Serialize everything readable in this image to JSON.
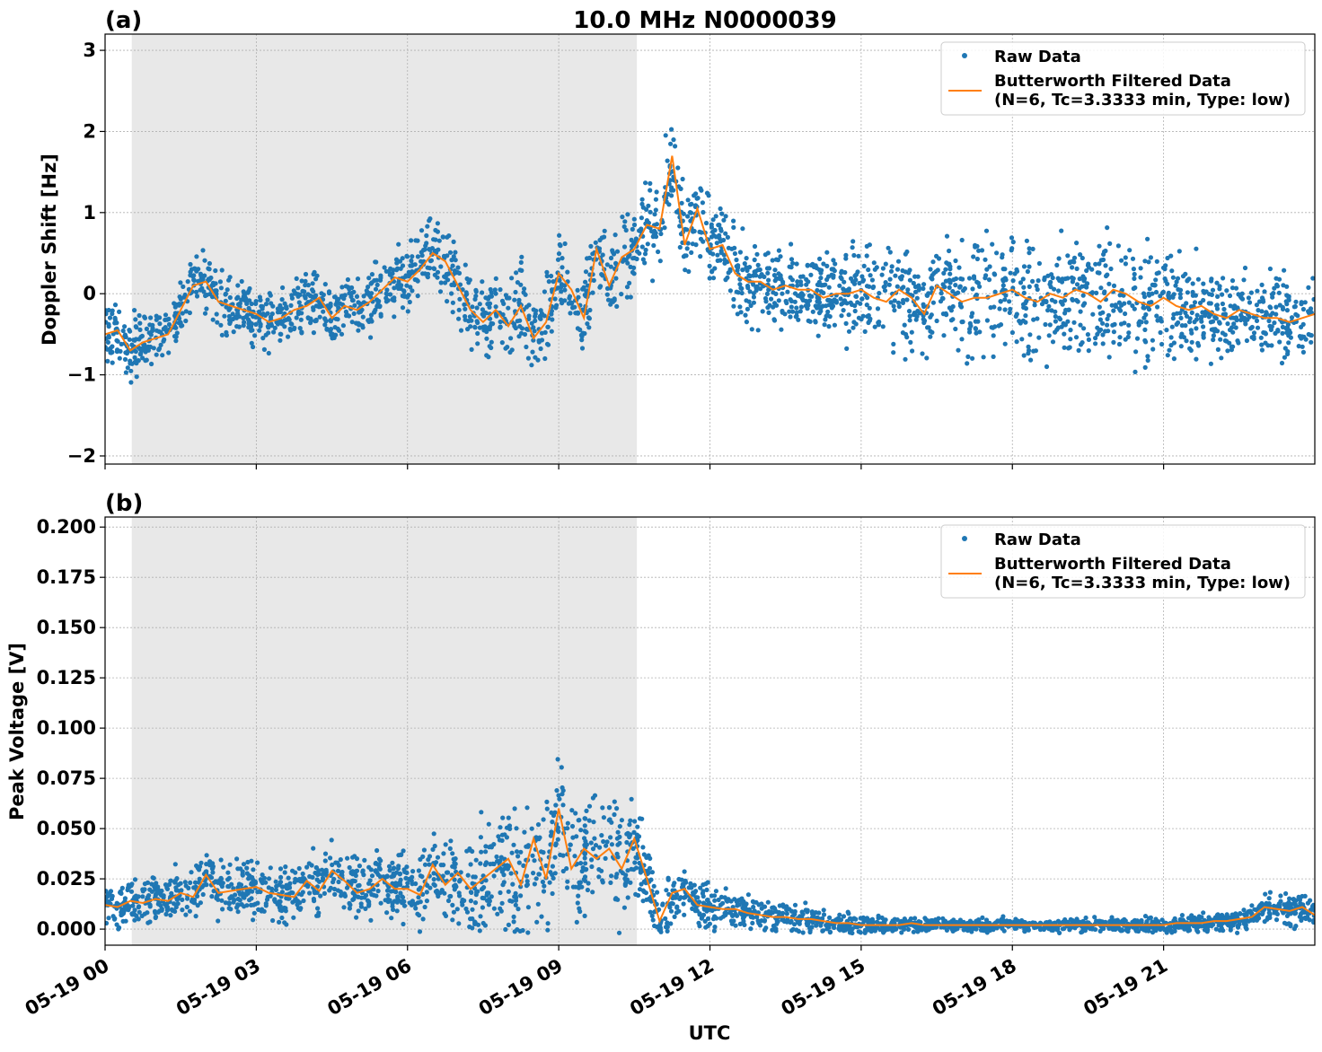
{
  "figure": {
    "xlabel": "UTC",
    "x_ticks": [
      "05-19 00",
      "05-19 03",
      "05-19 06",
      "05-19 09",
      "05-19 12",
      "05-19 15",
      "05-19 18",
      "05-19 21"
    ],
    "night_shading_hours": [
      0.53,
      10.55
    ]
  },
  "colors": {
    "raw": "#1f77b4",
    "filtered": "#ff7f0e",
    "shade": "#e8e8e8"
  },
  "chart_data": [
    {
      "type": "scatter",
      "panel_label": "(a)",
      "title": "10.0 MHz N0000039",
      "xlabel": "",
      "ylabel": "Doppler Shift [Hz]",
      "x_unit": "hours UTC on 05-19",
      "xlim": [
        0,
        24
      ],
      "ylim": [
        -2.1,
        3.2
      ],
      "y_ticks": [
        "3",
        "2",
        "1",
        "0",
        "−1",
        "−2"
      ],
      "grid": true,
      "legend": {
        "placement": "top-right",
        "raw_label": "Raw Data",
        "filtered_label_1": "Butterworth Filtered Data",
        "filtered_label_2": "(N=6, Tc=3.3333 min, Type: low)"
      },
      "series": [
        {
          "name": "Butterworth Filtered Data",
          "hours": [
            0.0,
            0.25,
            0.5,
            0.75,
            1.0,
            1.25,
            1.5,
            1.75,
            2.0,
            2.25,
            2.5,
            2.75,
            3.0,
            3.25,
            3.5,
            3.75,
            4.0,
            4.25,
            4.5,
            4.75,
            5.0,
            5.25,
            5.5,
            5.75,
            6.0,
            6.25,
            6.5,
            6.75,
            7.0,
            7.25,
            7.5,
            7.75,
            8.0,
            8.25,
            8.5,
            8.75,
            9.0,
            9.25,
            9.5,
            9.75,
            10.0,
            10.25,
            10.5,
            10.75,
            11.0,
            11.25,
            11.5,
            11.75,
            12.0,
            12.25,
            12.5,
            12.75,
            13.0,
            13.25,
            13.5,
            13.75,
            14.0,
            14.25,
            14.5,
            14.75,
            15.0,
            15.25,
            15.5,
            15.75,
            16.0,
            16.25,
            16.5,
            16.75,
            17.0,
            17.25,
            17.5,
            17.75,
            18.0,
            18.25,
            18.5,
            18.75,
            19.0,
            19.25,
            19.5,
            19.75,
            20.0,
            20.25,
            20.5,
            20.75,
            21.0,
            21.25,
            21.5,
            21.75,
            22.0,
            22.25,
            22.5,
            22.75,
            23.0,
            23.25,
            23.5,
            23.75,
            24.0
          ],
          "values": [
            -0.5,
            -0.45,
            -0.7,
            -0.6,
            -0.55,
            -0.5,
            -0.2,
            0.1,
            0.15,
            -0.1,
            -0.15,
            -0.2,
            -0.25,
            -0.35,
            -0.3,
            -0.2,
            -0.15,
            -0.05,
            -0.3,
            -0.15,
            -0.2,
            -0.1,
            0.05,
            0.2,
            0.15,
            0.3,
            0.5,
            0.4,
            0.1,
            -0.2,
            -0.35,
            -0.2,
            -0.4,
            -0.15,
            -0.55,
            -0.35,
            0.25,
            0.05,
            -0.3,
            0.55,
            0.1,
            0.45,
            0.55,
            0.85,
            0.8,
            1.7,
            0.6,
            1.05,
            0.55,
            0.6,
            0.25,
            0.15,
            0.15,
            0.05,
            0.1,
            0.05,
            0.05,
            -0.05,
            0.0,
            0.0,
            0.05,
            -0.05,
            -0.1,
            0.05,
            -0.05,
            -0.25,
            0.1,
            0.0,
            -0.1,
            -0.05,
            -0.05,
            0.0,
            0.05,
            -0.05,
            -0.1,
            0.0,
            -0.05,
            0.05,
            0.0,
            -0.1,
            0.05,
            0.0,
            -0.1,
            -0.15,
            -0.05,
            -0.15,
            -0.2,
            -0.15,
            -0.25,
            -0.3,
            -0.2,
            -0.25,
            -0.3,
            -0.3,
            -0.35,
            -0.3,
            -0.25
          ]
        },
        {
          "name": "Raw Data",
          "spread_hours": [
            0,
            2,
            4,
            6,
            8,
            10,
            11,
            12,
            14,
            16,
            18,
            20,
            22,
            24
          ],
          "spread_values": [
            0.25,
            0.22,
            0.22,
            0.25,
            0.3,
            0.3,
            0.35,
            0.3,
            0.28,
            0.4,
            0.45,
            0.45,
            0.35,
            0.3
          ]
        }
      ]
    },
    {
      "type": "scatter",
      "panel_label": "(b)",
      "title": "",
      "xlabel": "UTC",
      "ylabel": "Peak Voltage [V]",
      "x_unit": "hours UTC on 05-19",
      "xlim": [
        0,
        24
      ],
      "ylim": [
        -0.008,
        0.205
      ],
      "y_ticks": [
        "0.200",
        "0.175",
        "0.150",
        "0.125",
        "0.100",
        "0.075",
        "0.050",
        "0.025",
        "0.000"
      ],
      "grid": true,
      "legend": {
        "placement": "top-right",
        "raw_label": "Raw Data",
        "filtered_label_1": "Butterworth Filtered Data",
        "filtered_label_2": "(N=6, Tc=3.3333 min, Type: low)"
      },
      "series": [
        {
          "name": "Butterworth Filtered Data",
          "hours": [
            0.0,
            0.25,
            0.5,
            0.75,
            1.0,
            1.25,
            1.5,
            1.75,
            2.0,
            2.25,
            2.5,
            2.75,
            3.0,
            3.25,
            3.5,
            3.75,
            4.0,
            4.25,
            4.5,
            4.75,
            5.0,
            5.25,
            5.5,
            5.75,
            6.0,
            6.25,
            6.5,
            6.75,
            7.0,
            7.25,
            7.5,
            7.75,
            8.0,
            8.25,
            8.5,
            8.75,
            9.0,
            9.25,
            9.5,
            9.75,
            10.0,
            10.25,
            10.5,
            10.75,
            11.0,
            11.25,
            11.5,
            11.75,
            12.0,
            12.25,
            12.5,
            12.75,
            13.0,
            13.25,
            13.5,
            13.75,
            14.0,
            14.25,
            14.5,
            14.75,
            15.0,
            15.25,
            15.5,
            15.75,
            16.0,
            16.25,
            16.5,
            16.75,
            17.0,
            17.25,
            17.5,
            17.75,
            18.0,
            18.25,
            18.5,
            18.75,
            19.0,
            19.25,
            19.5,
            19.75,
            20.0,
            20.25,
            20.5,
            20.75,
            21.0,
            21.25,
            21.5,
            21.75,
            22.0,
            22.25,
            22.5,
            22.75,
            23.0,
            23.25,
            23.5,
            23.75,
            24.0
          ],
          "values": [
            0.012,
            0.011,
            0.014,
            0.013,
            0.015,
            0.014,
            0.018,
            0.016,
            0.027,
            0.018,
            0.019,
            0.02,
            0.021,
            0.018,
            0.017,
            0.016,
            0.024,
            0.019,
            0.029,
            0.024,
            0.018,
            0.02,
            0.025,
            0.02,
            0.02,
            0.017,
            0.032,
            0.022,
            0.028,
            0.02,
            0.025,
            0.03,
            0.035,
            0.022,
            0.045,
            0.025,
            0.06,
            0.03,
            0.04,
            0.035,
            0.04,
            0.03,
            0.045,
            0.025,
            0.004,
            0.018,
            0.02,
            0.012,
            0.011,
            0.01,
            0.01,
            0.008,
            0.007,
            0.006,
            0.006,
            0.005,
            0.005,
            0.004,
            0.003,
            0.003,
            0.002,
            0.002,
            0.002,
            0.002,
            0.003,
            0.002,
            0.002,
            0.002,
            0.002,
            0.002,
            0.002,
            0.002,
            0.002,
            0.002,
            0.002,
            0.002,
            0.002,
            0.002,
            0.002,
            0.002,
            0.002,
            0.002,
            0.002,
            0.002,
            0.002,
            0.003,
            0.003,
            0.003,
            0.004,
            0.004,
            0.005,
            0.006,
            0.011,
            0.01,
            0.009,
            0.011,
            0.007
          ]
        },
        {
          "name": "Raw Data",
          "spread_hours": [
            0,
            2,
            4,
            6,
            8,
            10,
            11,
            12,
            14,
            16,
            18,
            20,
            22,
            24
          ],
          "spread_values": [
            0.006,
            0.008,
            0.009,
            0.01,
            0.018,
            0.02,
            0.008,
            0.006,
            0.004,
            0.002,
            0.002,
            0.002,
            0.003,
            0.005
          ]
        }
      ]
    }
  ]
}
